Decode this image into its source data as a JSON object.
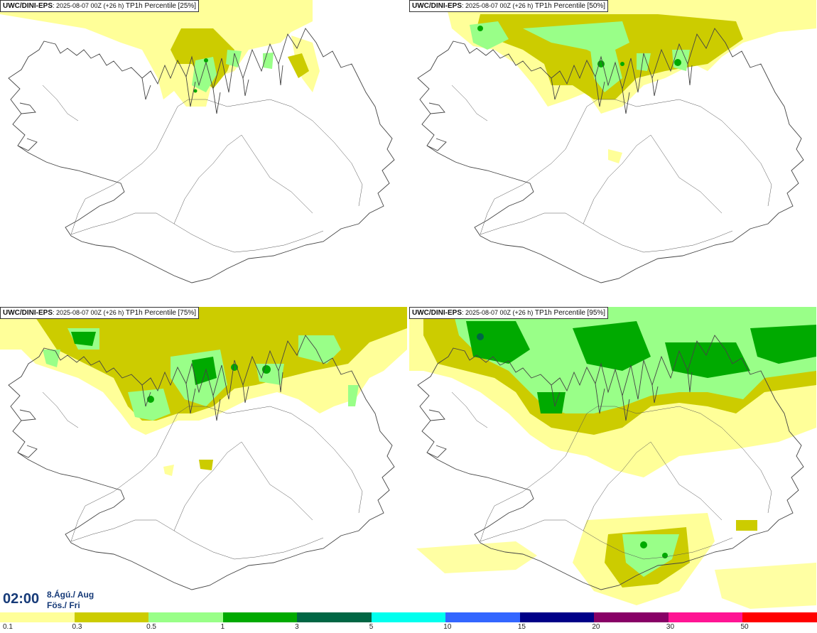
{
  "panels": [
    {
      "model": "UWC/DINI-EPS",
      "run": ": 2025-08-07 00Z (+26 h)",
      "field": "TP1h Percentile",
      "percentile": "[25%]"
    },
    {
      "model": "UWC/DINI-EPS",
      "run": ": 2025-08-07 00Z (+26 h)",
      "field": "TP1h Percentile",
      "percentile": "[50%]"
    },
    {
      "model": "UWC/DINI-EPS",
      "run": ": 2025-08-07 00Z (+26 h)",
      "field": "TP1h Percentile",
      "percentile": "[75%]"
    },
    {
      "model": "UWC/DINI-EPS",
      "run": ": 2025-08-07 00Z (+26 h)",
      "field": "TP1h Percentile",
      "percentile": "[95%]"
    }
  ],
  "valid_time": {
    "time": "02:00",
    "date_line1": "8.Ágú./ Aug",
    "date_line2": "Fös./ Fri"
  },
  "legend": {
    "colors": [
      "#ffff99",
      "#cccc00",
      "#99ff88",
      "#00aa00",
      "#006644",
      "#00ffee",
      "#3366ff",
      "#000088",
      "#880066",
      "#ff1493",
      "#ff0000"
    ],
    "labels": [
      "0.1",
      "0.3",
      "0.5",
      "1",
      "3",
      "5",
      "10",
      "15",
      "20",
      "30",
      "50"
    ]
  }
}
